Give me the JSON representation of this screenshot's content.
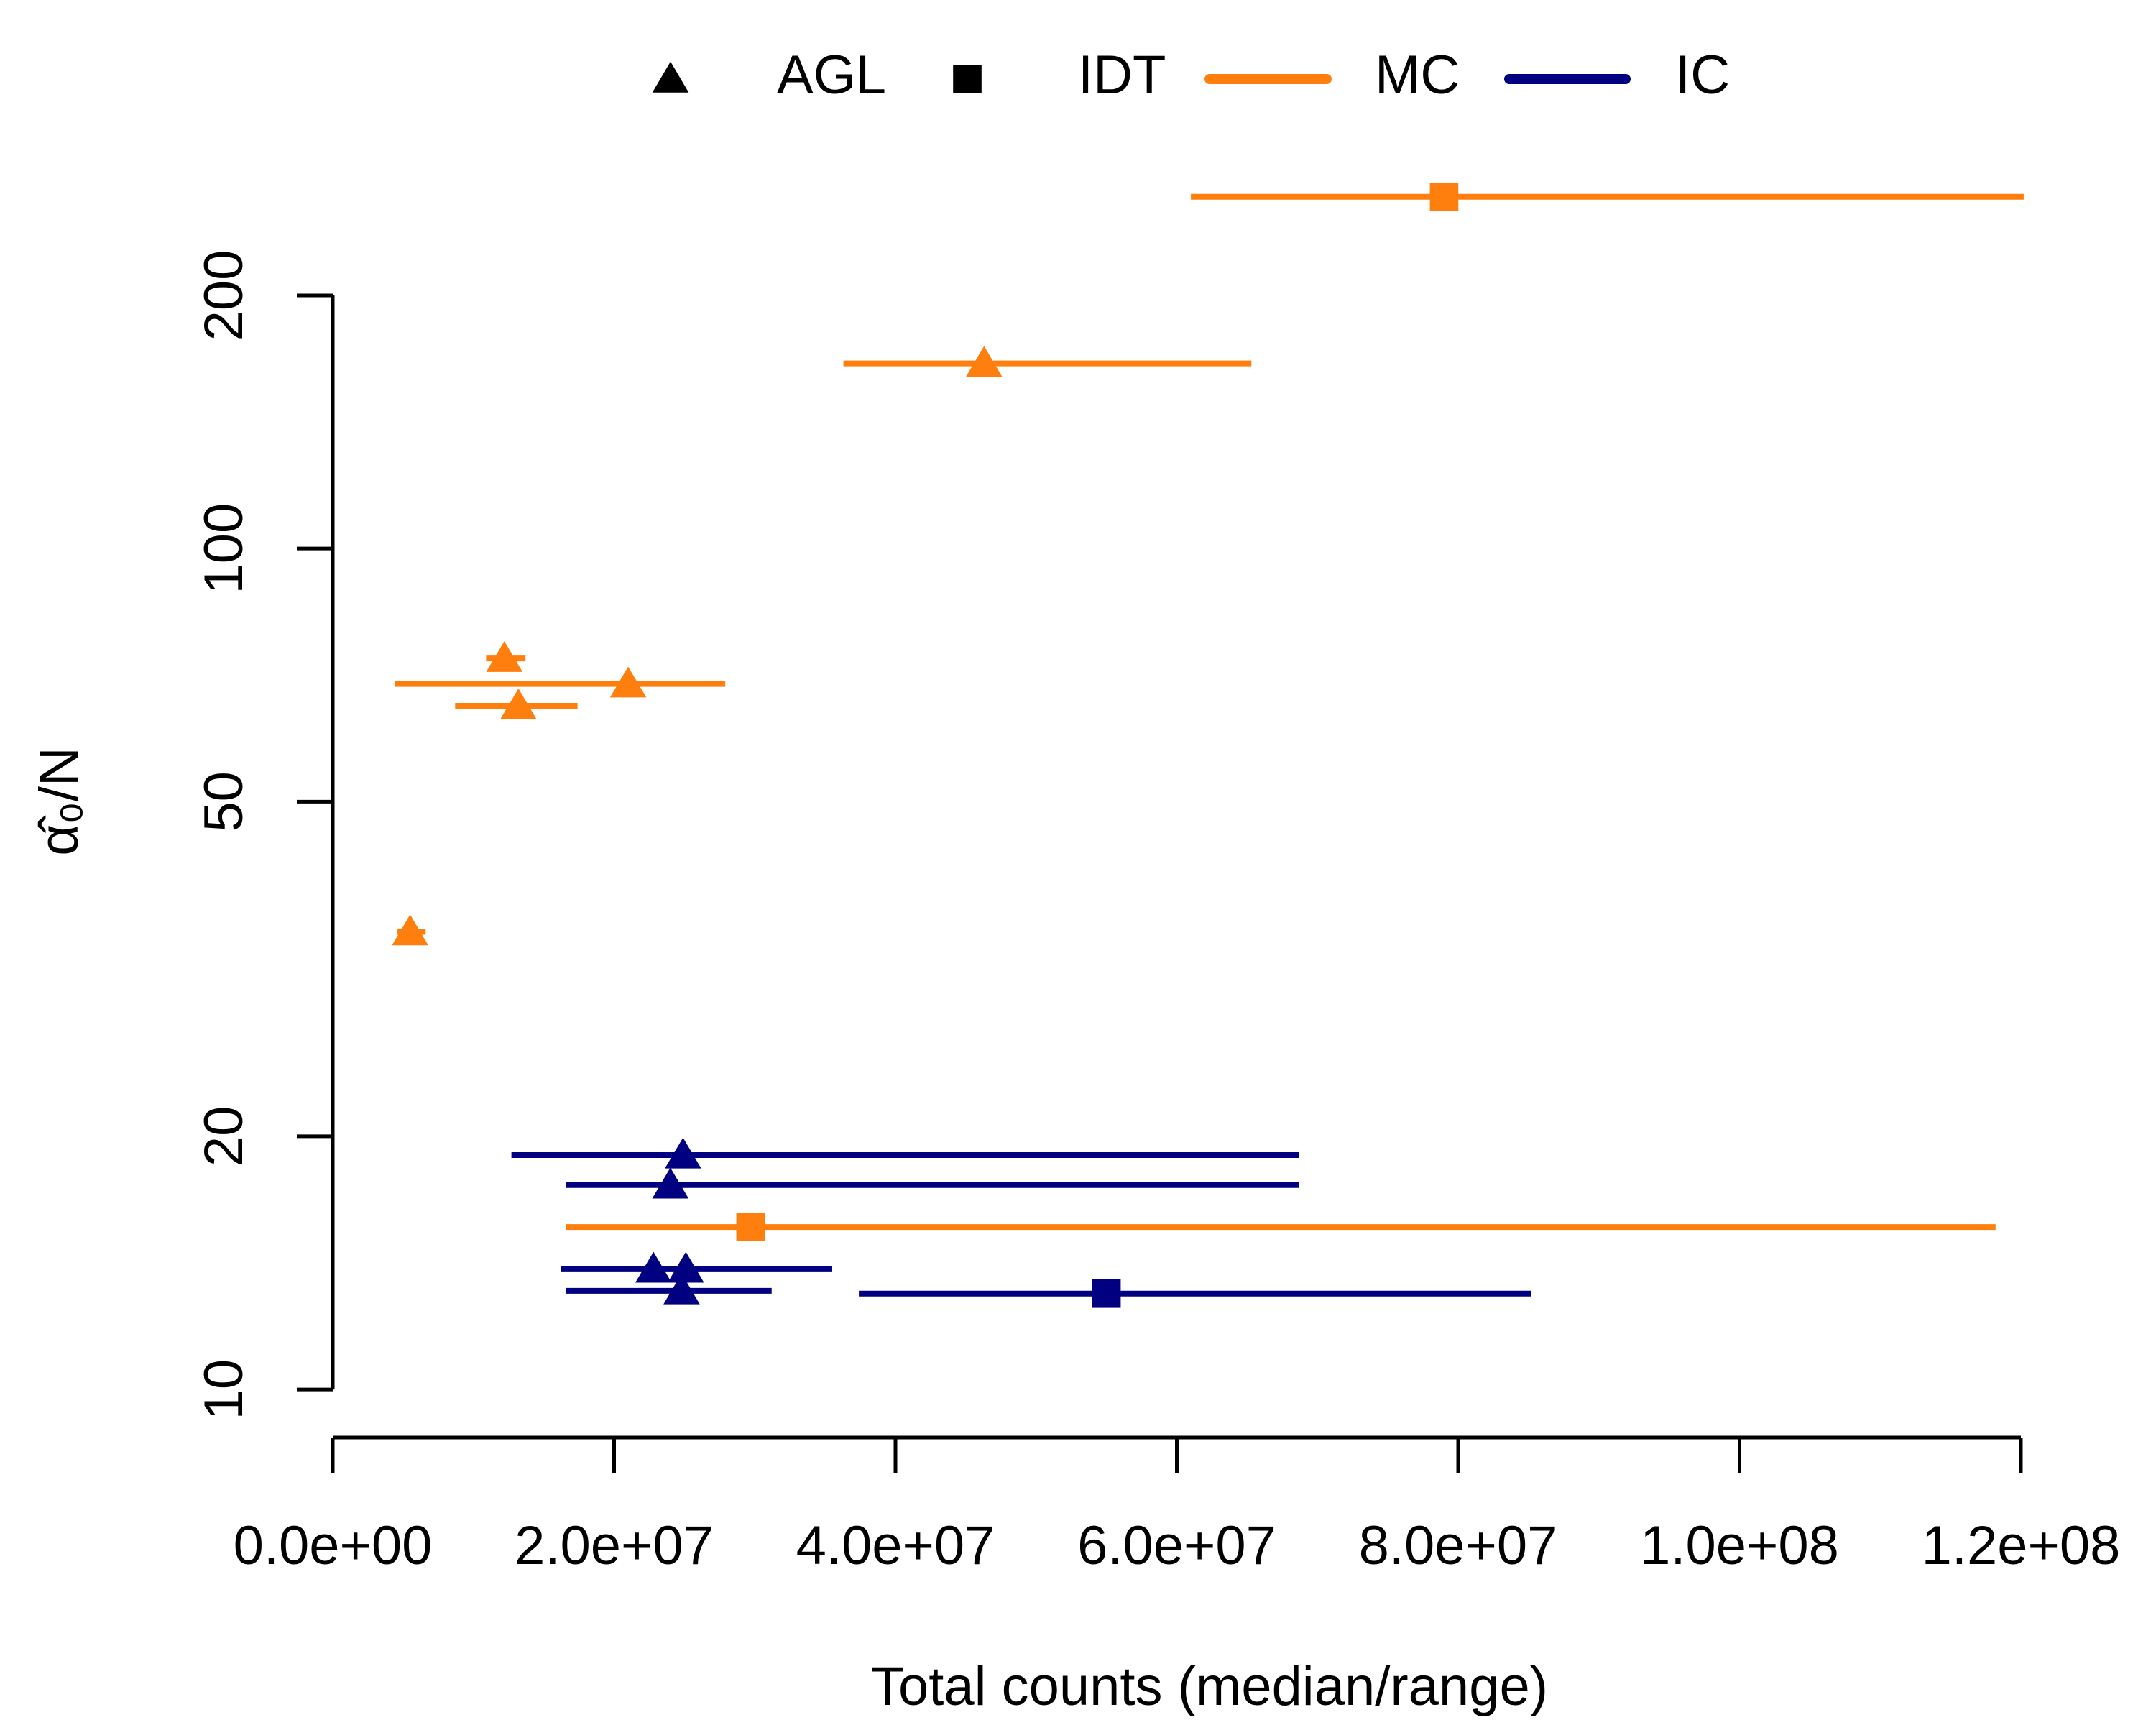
{
  "chart_data": {
    "type": "scatter-range",
    "xlabel": "Total counts (median/range)",
    "ylabel": "α̂₀/N",
    "xlim": [
      0,
      120000000
    ],
    "xticks": [
      {
        "value": 0,
        "label": "0.0e+00"
      },
      {
        "value": 20000000,
        "label": "2.0e+07"
      },
      {
        "value": 40000000,
        "label": "4.0e+07"
      },
      {
        "value": 60000000,
        "label": "6.0e+07"
      },
      {
        "value": 80000000,
        "label": "8.0e+07"
      },
      {
        "value": 100000000,
        "label": "1.0e+08"
      },
      {
        "value": 120000000,
        "label": "1.2e+08"
      }
    ],
    "ylim": [
      9.1,
      280
    ],
    "yticks": [
      10,
      20,
      50,
      100,
      200
    ],
    "ylog": true,
    "legend": "top",
    "markers": [
      {
        "name": "AGL",
        "shape": "triangle"
      },
      {
        "name": "IDT",
        "shape": "square"
      }
    ],
    "series": [
      {
        "name": "MC",
        "color": "#ff7f0e",
        "x": [
          79000000,
          46300000,
          12200000,
          21000000,
          13200000,
          5500000,
          29700000
        ],
        "xmin": [
          61000000,
          36300000,
          10900000,
          4400000,
          8700000,
          4600000,
          16600000
        ],
        "xmax": [
          120200000,
          65300000,
          13700000,
          27900000,
          17400000,
          6600000,
          118200000
        ],
        "values": [
          262,
          166,
          74,
          69,
          65,
          35,
          15.6
        ],
        "marker": [
          "IDT",
          "AGL",
          "AGL",
          "AGL",
          "AGL",
          "AGL",
          "IDT"
        ]
      },
      {
        "name": "IC",
        "color": "#000080",
        "x": [
          24900000,
          24000000,
          22800000,
          25100000,
          24800000,
          55000000
        ],
        "xmin": [
          12700000,
          16600000,
          16200000,
          16200000,
          16600000,
          37400000
        ],
        "xmax": [
          68700000,
          68700000,
          35500000,
          35500000,
          31200000,
          85200000
        ],
        "values": [
          19,
          17.5,
          13.9,
          13.9,
          13.1,
          13.0
        ],
        "marker": [
          "AGL",
          "AGL",
          "AGL",
          "AGL",
          "AGL",
          "IDT"
        ]
      }
    ]
  }
}
